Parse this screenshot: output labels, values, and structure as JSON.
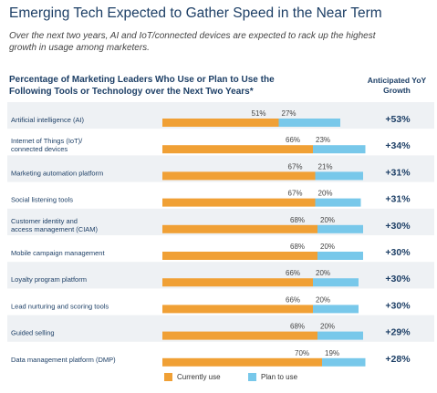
{
  "title": "Emerging Tech Expected to Gather Speed in the Near Term",
  "subtitle": "Over the next two years, AI and IoT/connected devices are expected to rack up the highest growth in usage among marketers.",
  "chart_heading": "Percentage of Marketing Leaders Who Use or Plan to Use the Following Tools or Technology over the Next Two Years*",
  "growth_heading": "Anticipated YoY Growth",
  "colors": {
    "current": "#f0a035",
    "plan": "#78c8ea",
    "row_band": "#eef1f4",
    "text": "#1d3f66"
  },
  "chart_data": {
    "type": "bar",
    "stacked": true,
    "orientation": "horizontal",
    "categories": [
      [
        "Artificial intelligence (AI)"
      ],
      [
        "Internet of Things (IoT)/",
        "connected devices"
      ],
      [
        "Marketing automation platform"
      ],
      [
        "Social listening tools"
      ],
      [
        "Customer identity and",
        "access management (CIAM)"
      ],
      [
        "Mobile campaign management"
      ],
      [
        "Loyalty program platform"
      ],
      [
        "Lead nurturing and scoring tools"
      ],
      [
        "Guided selling"
      ],
      [
        "Data management platform (DMP)"
      ]
    ],
    "series": [
      {
        "name": "Currently use",
        "values": [
          51,
          66,
          67,
          67,
          68,
          68,
          66,
          66,
          68,
          70
        ],
        "labels": [
          "51%",
          "66%",
          "67%",
          "67%",
          "68%",
          "68%",
          "66%",
          "66%",
          "68%",
          "70%"
        ]
      },
      {
        "name": "Plan to use",
        "values": [
          27,
          23,
          21,
          20,
          20,
          20,
          20,
          20,
          20,
          19
        ],
        "labels": [
          "27%",
          "23%",
          "21%",
          "20%",
          "20%",
          "20%",
          "20%",
          "20%",
          "20%",
          "19%"
        ]
      }
    ],
    "growth": [
      "+53%",
      "+34%",
      "+31%",
      "+31%",
      "+30%",
      "+30%",
      "+30%",
      "+30%",
      "+29%",
      "+28%"
    ],
    "xlim": [
      0,
      100
    ]
  },
  "legend": {
    "current": "Currently use",
    "plan": "Plan to use"
  }
}
